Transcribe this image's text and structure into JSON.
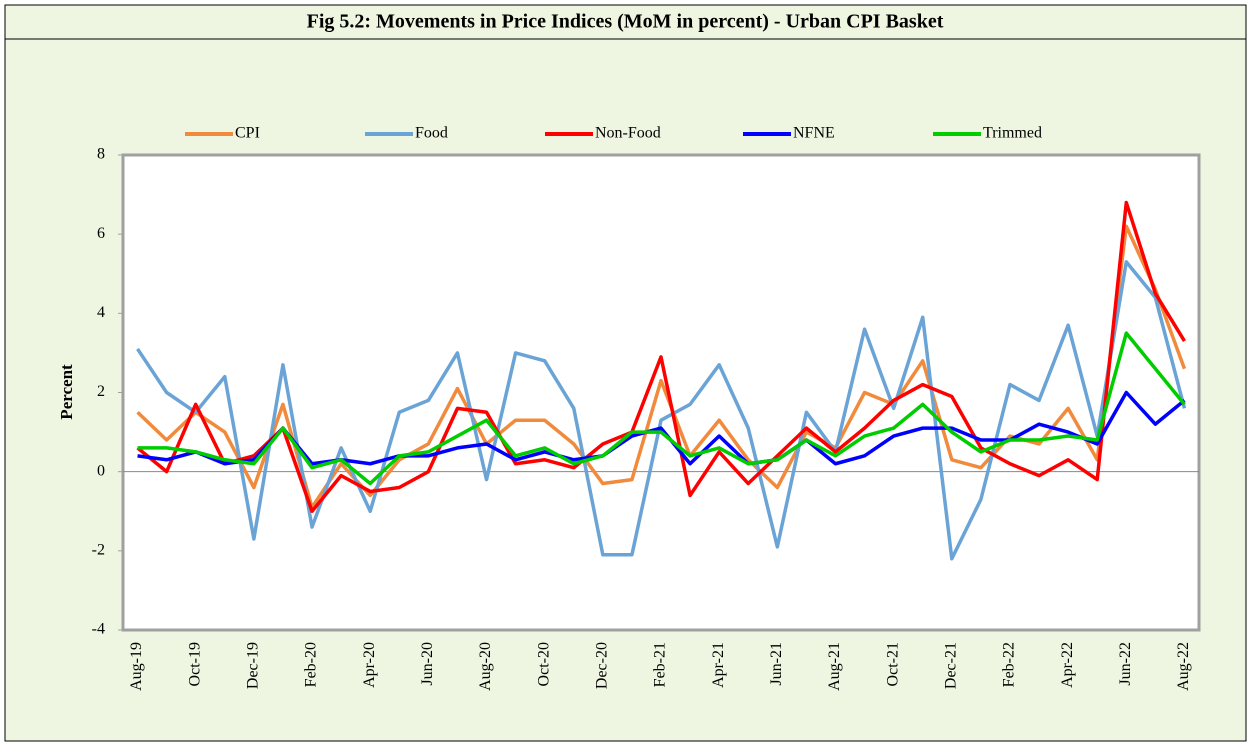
{
  "chart_data": {
    "type": "line",
    "title": "Fig 5.2: Movements in Price Indices (MoM in percent) - Urban CPI Basket",
    "y_label": "Percent",
    "categories": [
      "Aug-19",
      null,
      "Oct-19",
      null,
      "Dec-19",
      null,
      "Feb-20",
      null,
      "Apr-20",
      null,
      "Jun-20",
      null,
      "Aug-20",
      null,
      "Oct-20",
      null,
      "Dec-20",
      null,
      "Feb-21",
      null,
      "Apr-21",
      null,
      "Jun-21",
      null,
      "Aug-21",
      null,
      "Oct-21",
      null,
      "Dec-21",
      null,
      "Feb-22",
      null,
      "Apr-22",
      null,
      "Jun-22",
      null,
      "Aug-22"
    ],
    "series": [
      {
        "name": "CPI",
        "color": "#f08a3c",
        "values": [
          1.5,
          0.8,
          1.5,
          1.0,
          -0.4,
          1.7,
          -0.9,
          0.2,
          -0.6,
          0.3,
          0.7,
          2.1,
          0.7,
          1.3,
          1.3,
          0.7,
          -0.3,
          -0.2,
          2.3,
          0.4,
          1.3,
          0.3,
          -0.4,
          1.0,
          0.6,
          2.0,
          1.7,
          2.8,
          0.3,
          0.1,
          0.9,
          0.7,
          1.6,
          0.3,
          6.2,
          4.6,
          2.6
        ]
      },
      {
        "name": "Food",
        "color": "#6aa3d5",
        "values": [
          3.1,
          2.0,
          1.5,
          2.4,
          -1.7,
          2.7,
          -1.4,
          0.6,
          -1.0,
          1.5,
          1.8,
          3.0,
          -0.2,
          3.0,
          2.8,
          1.6,
          -2.1,
          -2.1,
          1.3,
          1.7,
          2.7,
          1.1,
          -1.9,
          1.5,
          0.5,
          3.6,
          1.6,
          3.9,
          -2.2,
          -0.7,
          2.2,
          1.8,
          3.7,
          0.9,
          5.3,
          4.4,
          1.6
        ]
      },
      {
        "name": "Non-Food",
        "color": "#ff0000",
        "values": [
          0.6,
          0.0,
          1.7,
          0.2,
          0.4,
          1.1,
          -1.0,
          -0.1,
          -0.5,
          -0.4,
          0.0,
          1.6,
          1.5,
          0.2,
          0.3,
          0.1,
          0.7,
          1.0,
          2.9,
          -0.6,
          0.5,
          -0.3,
          0.4,
          1.1,
          0.5,
          1.1,
          1.8,
          2.2,
          1.9,
          0.6,
          0.2,
          -0.1,
          0.3,
          -0.2,
          6.8,
          4.5,
          3.3
        ]
      },
      {
        "name": "NFNE",
        "color": "#0000ff",
        "values": [
          0.4,
          0.3,
          0.5,
          0.2,
          0.3,
          1.1,
          0.2,
          0.3,
          0.2,
          0.4,
          0.4,
          0.6,
          0.7,
          0.3,
          0.5,
          0.3,
          0.4,
          0.9,
          1.1,
          0.2,
          0.9,
          0.2,
          0.3,
          0.8,
          0.2,
          0.4,
          0.9,
          1.1,
          1.1,
          0.8,
          0.8,
          1.2,
          1.0,
          0.7,
          2.0,
          1.2,
          1.8
        ]
      },
      {
        "name": "Trimmed",
        "color": "#00cc00",
        "values": [
          0.6,
          0.6,
          0.5,
          0.3,
          0.2,
          1.1,
          0.1,
          0.3,
          -0.3,
          0.4,
          0.5,
          0.9,
          1.3,
          0.4,
          0.6,
          0.2,
          0.4,
          1.0,
          1.0,
          0.4,
          0.6,
          0.2,
          0.3,
          0.8,
          0.4,
          0.9,
          1.1,
          1.7,
          1.0,
          0.5,
          0.8,
          0.8,
          0.9,
          0.8,
          3.5,
          2.6,
          1.7
        ]
      }
    ],
    "ylim": [
      -4,
      8
    ],
    "yticks": [
      -4,
      -2,
      0,
      2,
      4,
      6,
      8
    ],
    "grid": false,
    "legend": "top"
  }
}
